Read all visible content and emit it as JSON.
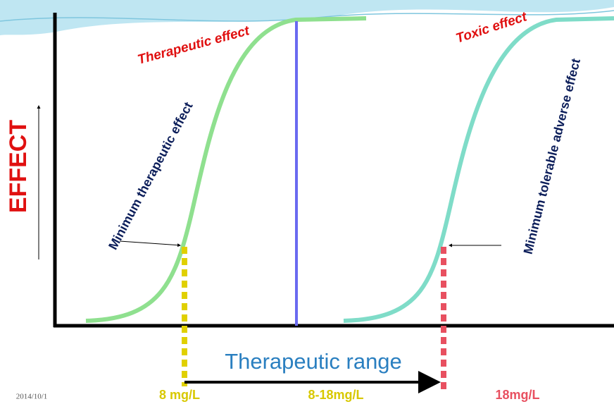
{
  "labels": {
    "y_axis": "EFFECT",
    "therapeutic_effect": "Therapeutic  effect",
    "toxic_effect": "Toxic effect",
    "minimum_therapeutic": "Minimum therapeutic effect",
    "minimum_tolerable": "Minimum tolerable adverse effect",
    "therapeutic_range": "Therapeutic range",
    "low_concentration": "8 mg/L",
    "range_concentration": "8-18mg/L",
    "high_concentration": "18mg/L",
    "date": "2014/10/1"
  }
}
